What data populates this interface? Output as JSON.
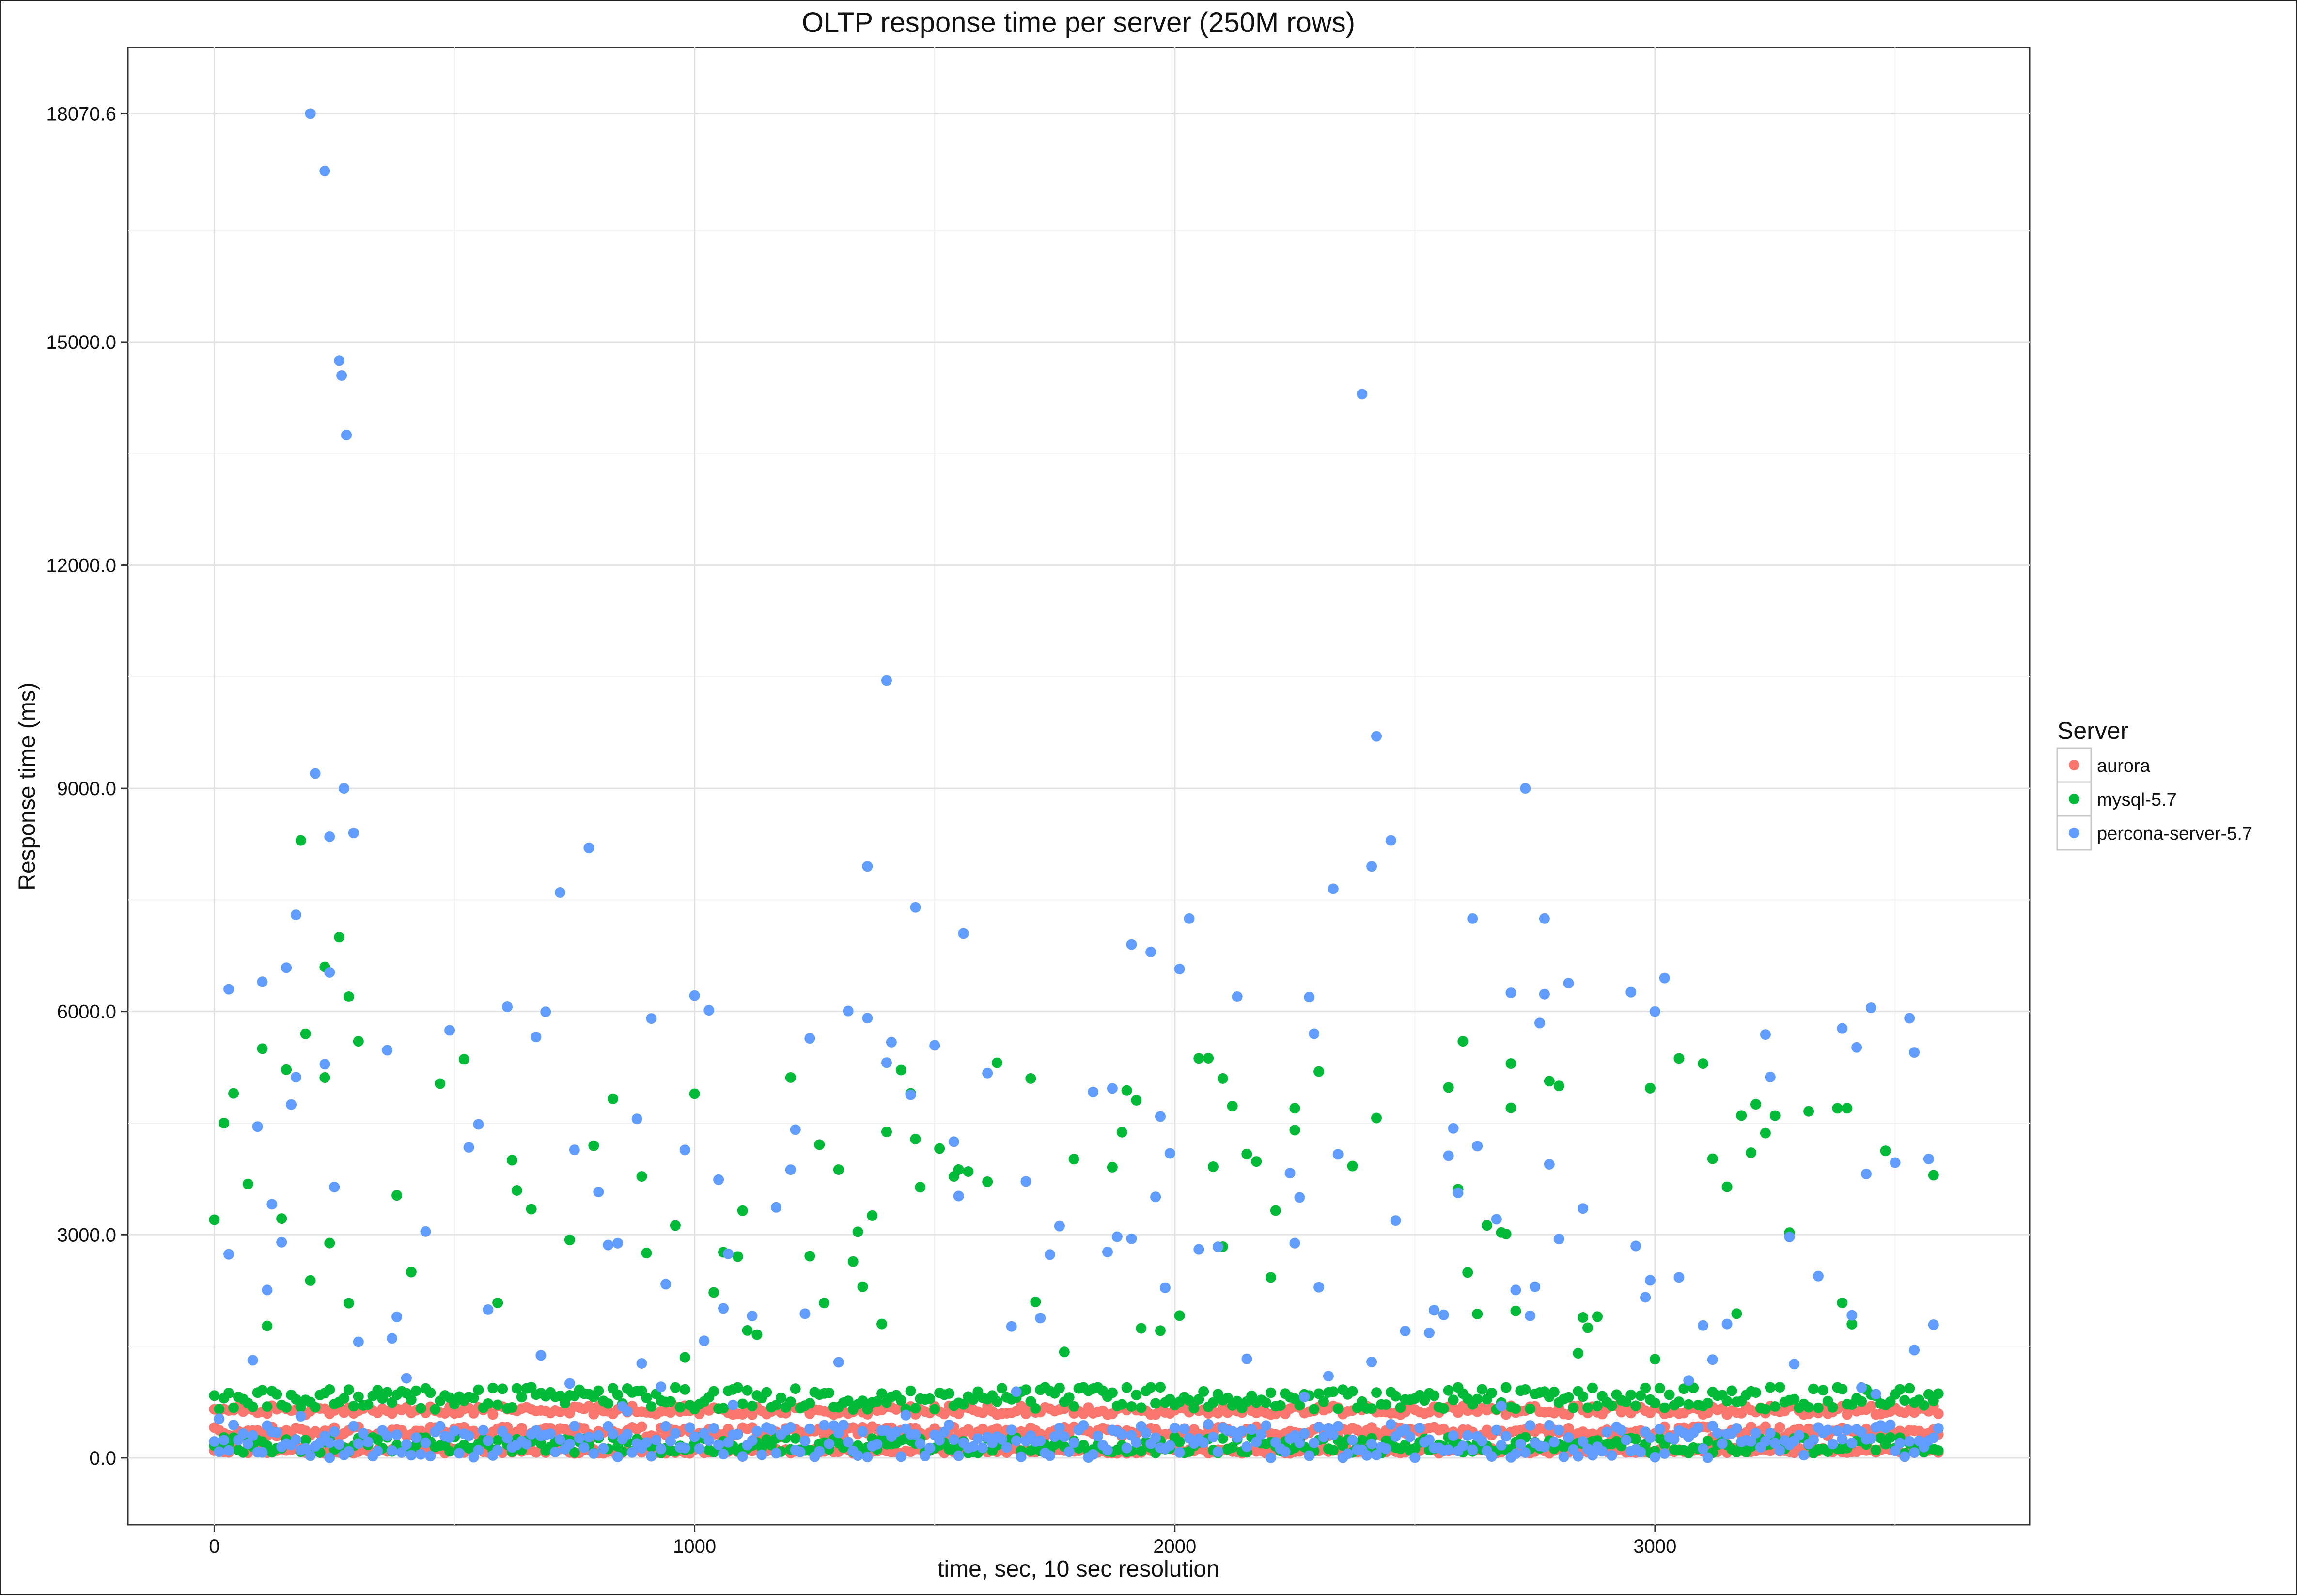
{
  "chart_data": {
    "type": "scatter",
    "title": "OLTP response time per server (250M rows)",
    "xlabel": "time, sec, 10 sec resolution",
    "ylabel": "Response time (ms)",
    "xlim": [
      -180,
      3780
    ],
    "ylim": [
      -900,
      18960
    ],
    "x_ticks": [
      0,
      1000,
      2000,
      3000
    ],
    "y_ticks": [
      0.0,
      3000.0,
      6000.0,
      9000.0,
      12000.0,
      15000.0,
      18070.6
    ],
    "y_tick_labels": [
      "0.0",
      "3000.0",
      "6000.0",
      "9000.0",
      "12000.0",
      "15000.0",
      "18070.6"
    ],
    "grid": true,
    "legend": {
      "title": "Server",
      "position": "right",
      "entries": [
        "aurora",
        "mysql-5.7",
        "percona-server-5.7"
      ]
    },
    "series": [
      {
        "name": "aurora",
        "color": "#F8766D",
        "x_start": 0,
        "x_step": 10,
        "x_end": 3590,
        "bands": [
          {
            "low": 60,
            "high": 130
          },
          {
            "low": 280,
            "high": 420
          },
          {
            "low": 580,
            "high": 700
          }
        ],
        "points": [
          [
            150,
            660
          ],
          [
            420,
            640
          ],
          [
            980,
            700
          ],
          [
            1500,
            690
          ],
          [
            2300,
            680
          ],
          [
            3100,
            690
          ]
        ]
      },
      {
        "name": "mysql-5.7",
        "color": "#00BA38",
        "x_start": 0,
        "x_step": 10,
        "x_end": 3590,
        "bands": [
          {
            "low": 650,
            "high": 950
          },
          {
            "low": 60,
            "high": 280
          }
        ],
        "scatter_low": 1300,
        "scatter_high": 5400,
        "points": [
          [
            0,
            3200
          ],
          [
            20,
            4500
          ],
          [
            40,
            4900
          ],
          [
            100,
            5500
          ],
          [
            180,
            8300
          ],
          [
            190,
            5700
          ],
          [
            230,
            6600
          ],
          [
            260,
            7000
          ],
          [
            280,
            6200
          ],
          [
            300,
            5600
          ],
          [
            1350,
            2300
          ],
          [
            1450,
            4900
          ],
          [
            1700,
            5100
          ],
          [
            2100,
            5100
          ],
          [
            2250,
            4700
          ],
          [
            2600,
            5600
          ],
          [
            2700,
            5300
          ],
          [
            2800,
            5000
          ],
          [
            3100,
            5300
          ],
          [
            3250,
            4600
          ],
          [
            3400,
            4700
          ],
          [
            3580,
            3800
          ]
        ]
      },
      {
        "name": "percona-server-5.7",
        "color": "#619CFF",
        "x_start": 0,
        "x_step": 10,
        "x_end": 3590,
        "bands": [
          {
            "low": 0,
            "high": 450
          }
        ],
        "scatter_low": 500,
        "scatter_high": 6700,
        "points": [
          [
            200,
            18070.6
          ],
          [
            230,
            17300
          ],
          [
            260,
            14750
          ],
          [
            265,
            14550
          ],
          [
            275,
            13750
          ],
          [
            210,
            9200
          ],
          [
            270,
            9000
          ],
          [
            290,
            8400
          ],
          [
            240,
            8350
          ],
          [
            170,
            7300
          ],
          [
            780,
            8200
          ],
          [
            720,
            7600
          ],
          [
            1360,
            7950
          ],
          [
            1400,
            10450
          ],
          [
            1460,
            7400
          ],
          [
            2390,
            14300
          ],
          [
            2420,
            9700
          ],
          [
            2450,
            8300
          ],
          [
            2410,
            7950
          ],
          [
            2330,
            7650
          ],
          [
            2730,
            9000
          ],
          [
            2770,
            7250
          ],
          [
            1950,
            6800
          ],
          [
            2030,
            7250
          ],
          [
            3450,
            6050
          ],
          [
            3540,
            5450
          ],
          [
            3000,
            6000
          ],
          [
            3020,
            6450
          ],
          [
            1560,
            7050
          ],
          [
            1910,
            6900
          ],
          [
            2620,
            7250
          ],
          [
            30,
            6300
          ],
          [
            100,
            6400
          ],
          [
            240,
            0
          ]
        ]
      }
    ]
  }
}
